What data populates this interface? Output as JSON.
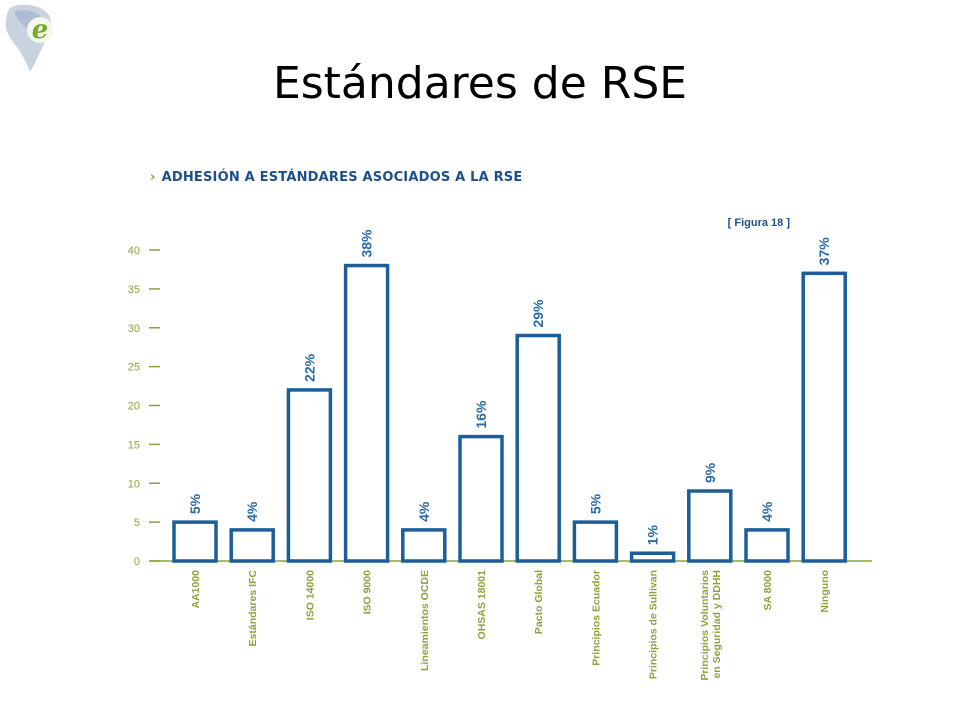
{
  "slide": {
    "title": "Estándares de RSE"
  },
  "chart_heading": {
    "marker": "›",
    "text": "ADHESIÓN A ESTÁNDARES ASOCIADOS A LA RSE"
  },
  "colors": {
    "bar_stroke": "#1b5e9a",
    "label_blue": "#2a6aa6",
    "axis_green": "#8aa33c",
    "heading_blue": "#1f4f8a"
  },
  "chart_data": {
    "type": "bar",
    "figure_label": "[ Figura 18 ]",
    "categories": [
      "AA1000",
      "Estándares IFC",
      "ISO 14000",
      "ISO 9000",
      "Lineamientos OCDE",
      "OHSAS 18001",
      "Pacto Global",
      "Principios Ecuador",
      "Principios de Sullivan",
      "Principios Voluntarios en Seguridad y DDHH",
      "SA 8000",
      "Ninguno"
    ],
    "values": [
      5,
      4,
      22,
      38,
      4,
      16,
      29,
      5,
      1,
      9,
      4,
      37
    ],
    "data_labels": [
      "5%",
      "4%",
      "22%",
      "38%",
      "4%",
      "16%",
      "29%",
      "5%",
      "1%",
      "9%",
      "4%",
      "37%"
    ],
    "ylim": [
      0,
      40
    ],
    "yticks": [
      0,
      5,
      10,
      15,
      20,
      25,
      30,
      35,
      40
    ],
    "xlabel": "",
    "ylabel": "",
    "grid": false,
    "legend": "none"
  }
}
